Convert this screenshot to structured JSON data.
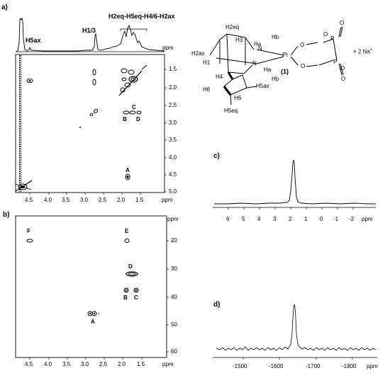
{
  "panels": {
    "a": "a)",
    "b": "b)",
    "c": "c)",
    "d": "d)"
  },
  "panel_a": {
    "top_peaks": [
      "H5ax",
      "H1/3",
      "H2eq-H5eq-H4/6-H2ax"
    ],
    "unit": "ppm",
    "x_ticks": [
      "4.5",
      "4.0",
      "3.5",
      "3.0",
      "2.5",
      "2.0",
      "1.5"
    ],
    "y_ticks": [
      "1.5",
      "2.0",
      "2.5",
      "3.0",
      "3.5",
      "4.0",
      "4.5",
      "5.0"
    ],
    "cross_peaks": [
      "A",
      "B",
      "C",
      "D"
    ]
  },
  "panel_b": {
    "unit": "ppm",
    "x_ticks": [
      "4.5",
      "4.0",
      "3.5",
      "3.0",
      "2.5",
      "2.0",
      "1.5"
    ],
    "y_ticks": [
      "20",
      "30",
      "40",
      "50",
      "60"
    ],
    "cross_peaks": [
      "F",
      "E",
      "D",
      "B",
      "C",
      "A"
    ]
  },
  "panel_c": {
    "unit": "ppm",
    "x_ticks": [
      "6",
      "5",
      "4",
      "3",
      "2",
      "1",
      "0",
      "-1",
      "-2"
    ]
  },
  "panel_d": {
    "unit": "ppm",
    "x_ticks": [
      "-1500",
      "-1600",
      "-1700",
      "-1800"
    ]
  },
  "structure": {
    "compound_number": "(1)",
    "counterion": "+ 2 Na",
    "counterion_sup": "+",
    "atoms": [
      "Pt",
      "N",
      "N",
      "O",
      "O",
      "O",
      "O",
      "P",
      "P",
      "O",
      "O"
    ],
    "h_labels": [
      "H2eq",
      "H3",
      "Hb",
      "Ha",
      "H2ax",
      "H1",
      "Ha",
      "Hb",
      "H4",
      "H6",
      "H6",
      "H5ax",
      "H5eq"
    ]
  },
  "chart_data": [
    {
      "type": "scatter",
      "panel": "a",
      "xlabel": "ppm",
      "ylabel": "ppm",
      "xlim": [
        4.85,
        1.2
      ],
      "ylim": [
        1.2,
        5.0
      ],
      "x_ticks": [
        4.5,
        4.0,
        3.5,
        3.0,
        2.5,
        2.0,
        1.5
      ],
      "y_ticks": [
        1.5,
        2.0,
        2.5,
        3.0,
        3.5,
        4.0,
        4.5,
        5.0
      ],
      "labeled_peaks": [
        {
          "label": "A",
          "x": 1.85,
          "y": 4.55
        },
        {
          "label": "B",
          "x": 1.85,
          "y": 2.75
        },
        {
          "label": "C",
          "x": 1.65,
          "y": 2.75
        },
        {
          "label": "D",
          "x": 1.65,
          "y": 2.75
        }
      ],
      "peaks": [
        {
          "x": 4.5,
          "y": 1.8
        },
        {
          "x": 2.75,
          "y": 1.6
        },
        {
          "x": 2.75,
          "y": 1.85
        },
        {
          "x": 1.85,
          "y": 1.6
        },
        {
          "x": 1.75,
          "y": 1.7
        },
        {
          "x": 1.65,
          "y": 1.85
        },
        {
          "x": 2.75,
          "y": 2.75
        },
        {
          "x": 3.05,
          "y": 3.1
        },
        {
          "x": 4.75,
          "y": 4.75
        }
      ]
    },
    {
      "type": "scatter",
      "panel": "b",
      "xlabel": "ppm",
      "ylabel": "ppm",
      "xlim": [
        4.85,
        1.2
      ],
      "ylim": [
        12,
        63
      ],
      "x_ticks": [
        4.5,
        4.0,
        3.5,
        3.0,
        2.5,
        2.0,
        1.5
      ],
      "y_ticks": [
        20,
        30,
        40,
        50,
        60
      ],
      "labeled_peaks": [
        {
          "label": "F",
          "x": 4.55,
          "y": 17
        },
        {
          "label": "E",
          "x": 1.85,
          "y": 17
        },
        {
          "label": "D",
          "x": 1.75,
          "y": 30
        },
        {
          "label": "B",
          "x": 1.85,
          "y": 36
        },
        {
          "label": "C",
          "x": 1.6,
          "y": 36
        },
        {
          "label": "A",
          "x": 2.75,
          "y": 46
        }
      ]
    },
    {
      "type": "line",
      "panel": "c",
      "xlabel": "ppm",
      "xlim": [
        7.3,
        -3.2
      ],
      "x_ticks": [
        6,
        5,
        4,
        3,
        2,
        1,
        0,
        -1,
        -2
      ],
      "peak_position": 1.5
    },
    {
      "type": "line",
      "panel": "d",
      "xlabel": "ppm",
      "xlim": [
        -1420,
        -1900
      ],
      "x_ticks": [
        -1500,
        -1600,
        -1700,
        -1800
      ],
      "peak_position": -1650
    }
  ]
}
